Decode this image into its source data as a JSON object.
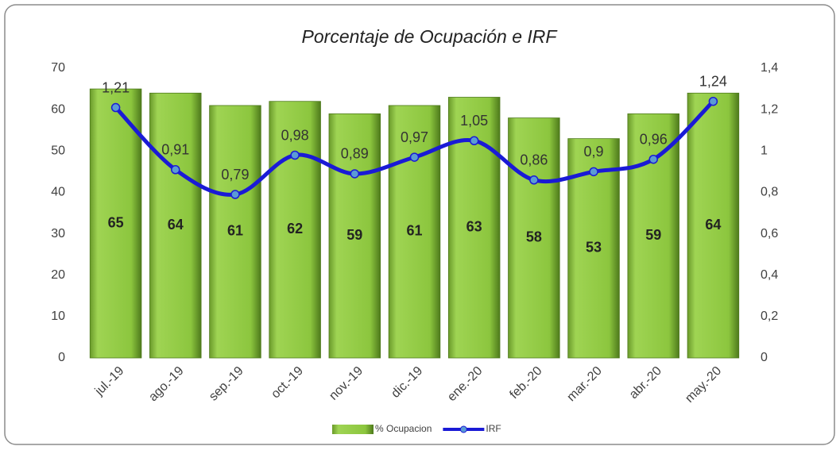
{
  "chart_data": {
    "type": "combo",
    "title": "Porcentaje de Ocupación e IRF",
    "categories": [
      "jul.-19",
      "ago.-19",
      "sep.-19",
      "oct.-19",
      "nov.-19",
      "dic.-19",
      "ene.-20",
      "feb.-20",
      "mar.-20",
      "abr.-20",
      "may.-20"
    ],
    "series": [
      {
        "name": "% Ocupacion",
        "type": "bar",
        "color": "#8dc63f",
        "values": [
          65,
          64,
          61,
          62,
          59,
          61,
          63,
          58,
          53,
          59,
          64
        ]
      },
      {
        "name": "IRF",
        "type": "line",
        "axis": "y2",
        "color": "#1a1ad6",
        "values": [
          1.21,
          0.91,
          0.79,
          0.98,
          0.89,
          0.97,
          1.05,
          0.86,
          0.9,
          0.96,
          1.24
        ],
        "value_labels": [
          "1,21",
          "0,91",
          "0,79",
          "0,98",
          "0,89",
          "0,97",
          "1,05",
          "0,86",
          "0,9",
          "0,96",
          "1,24"
        ]
      }
    ],
    "ylim": [
      0,
      70
    ],
    "yticks": [
      0,
      10,
      20,
      30,
      40,
      50,
      60,
      70
    ],
    "y2lim": [
      0,
      1.4
    ],
    "y2ticks": [
      0,
      {
        "value": 0.2,
        "label": "0,2"
      },
      {
        "value": 0.4,
        "label": "0,4"
      },
      {
        "value": 0.6,
        "label": "0,6"
      },
      {
        "value": 0.8,
        "label": "0,8"
      },
      {
        "value": 1,
        "label": "1"
      },
      {
        "value": 1.2,
        "label": "1,2"
      },
      {
        "value": 1.4,
        "label": "1,4"
      }
    ],
    "legend": "bottom"
  }
}
